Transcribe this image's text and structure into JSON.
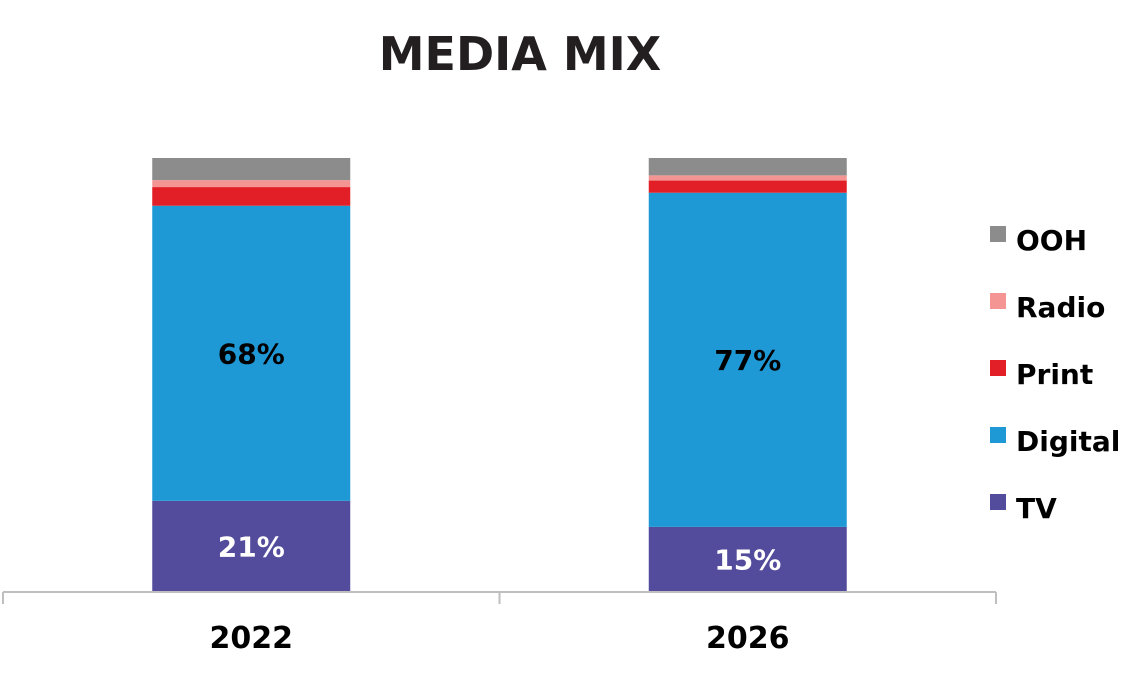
{
  "chart_data": {
    "type": "bar",
    "stacked": true,
    "title": "MEDIA MIX",
    "categories": [
      "2022",
      "2026"
    ],
    "series": [
      {
        "name": "TV",
        "color": "#534b9b",
        "values": [
          21,
          15
        ],
        "labels": [
          "21%",
          "15%"
        ],
        "label_color": "#ffffff"
      },
      {
        "name": "Digital",
        "color": "#1f99d5",
        "values": [
          68,
          77
        ],
        "labels": [
          "68%",
          "77%"
        ],
        "label_color": "#000000"
      },
      {
        "name": "Print",
        "color": "#e21f26",
        "values": [
          4.3,
          2.8
        ],
        "labels": [
          "",
          ""
        ]
      },
      {
        "name": "Radio",
        "color": "#f59593",
        "values": [
          1.6,
          1.2
        ],
        "labels": [
          "",
          ""
        ]
      },
      {
        "name": "OOH",
        "color": "#8c8c8c",
        "values": [
          5.1,
          4.0
        ],
        "labels": [
          "",
          ""
        ]
      }
    ],
    "ylim": [
      0,
      100
    ],
    "grid": false,
    "legend_position": "right"
  }
}
